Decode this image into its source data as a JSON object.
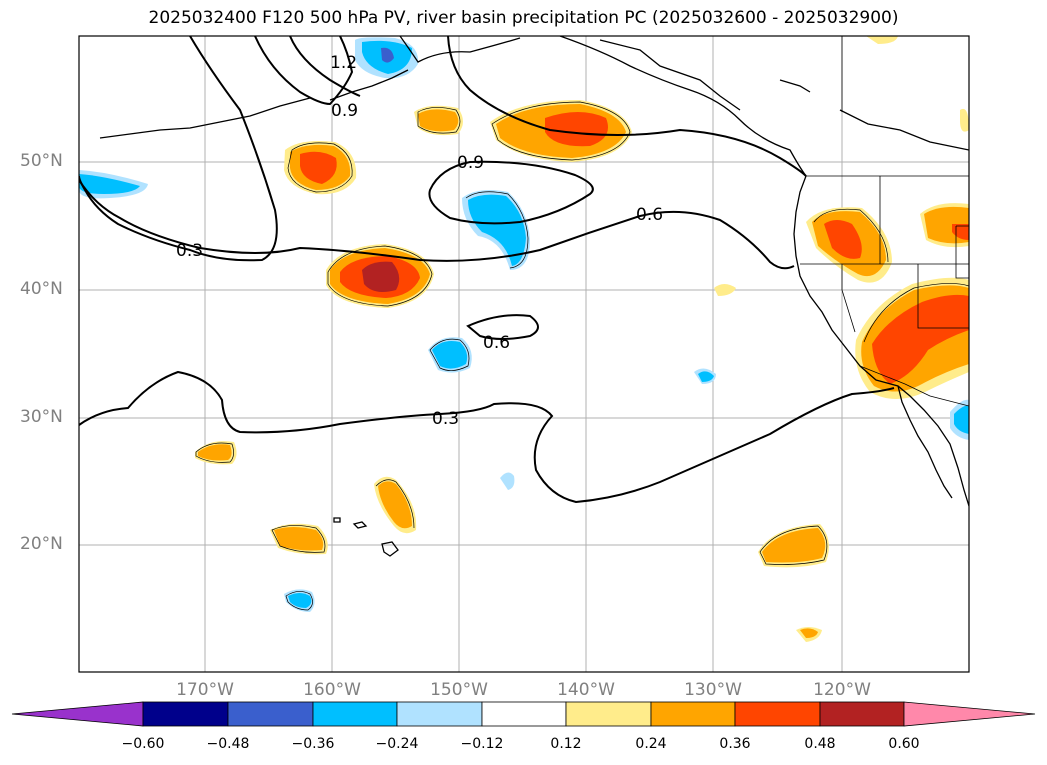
{
  "title": "2025032400 F120 500 hPa PV, river basin precipitation PC (2025032600 - 2025032900)",
  "map": {
    "lon_labels": [
      "170°W",
      "160°W",
      "150°W",
      "140°W",
      "130°W",
      "120°W"
    ],
    "lat_labels": [
      "50°N",
      "40°N",
      "30°N",
      "20°N"
    ],
    "contour_labels": [
      "1.2",
      "0.9",
      "0.9",
      "0.6",
      "0.3",
      "0.6",
      "0.3"
    ]
  },
  "colorbar": {
    "ticks": [
      "−0.60",
      "−0.48",
      "−0.36",
      "−0.24",
      "−0.12",
      "0.12",
      "0.24",
      "0.36",
      "0.48",
      "0.60"
    ],
    "colors": [
      "#9932cc",
      "#00008b",
      "#3a5fcd",
      "#00bfff",
      "#b0e2ff",
      "#ffffff",
      "#ffec8b",
      "#ffa500",
      "#ff4500",
      "#b22222",
      "#ff88aa"
    ]
  }
}
